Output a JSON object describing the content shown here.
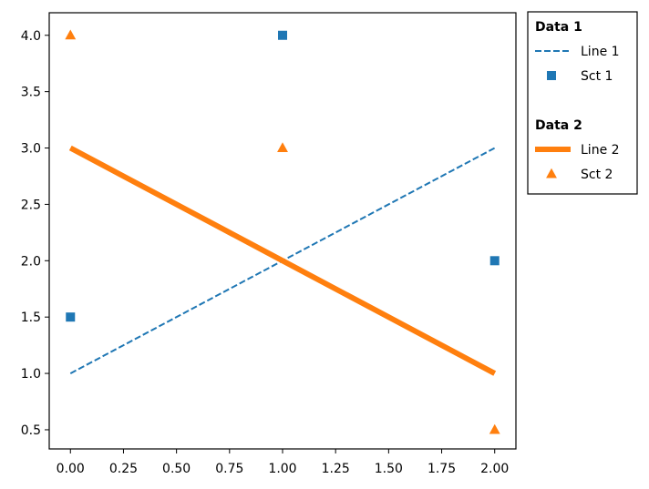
{
  "chart_data": {
    "type": "line",
    "title": "",
    "xlabel": "",
    "ylabel": "",
    "xlim": [
      -0.1,
      2.1
    ],
    "ylim": [
      0.33,
      4.2
    ],
    "xticks": [
      0.0,
      0.25,
      0.5,
      0.75,
      1.0,
      1.25,
      1.5,
      1.75,
      2.0
    ],
    "xtick_labels": [
      "0.00",
      "0.25",
      "0.50",
      "0.75",
      "1.00",
      "1.25",
      "1.50",
      "1.75",
      "2.00"
    ],
    "yticks": [
      0.5,
      1.0,
      1.5,
      2.0,
      2.5,
      3.0,
      3.5,
      4.0
    ],
    "ytick_labels": [
      "0.5",
      "1.0",
      "1.5",
      "2.0",
      "2.5",
      "3.0",
      "3.5",
      "4.0"
    ],
    "grid": false,
    "legend_placement": "outside-top-right",
    "legend_groups": [
      {
        "title": "Data 1",
        "entries": [
          {
            "label": "Line 1",
            "kind": "line",
            "series": "line1"
          },
          {
            "label": "Sct 1",
            "kind": "marker",
            "series": "sct1"
          }
        ]
      },
      {
        "title": "Data 2",
        "entries": [
          {
            "label": "Line 2",
            "kind": "line",
            "series": "line2"
          },
          {
            "label": "Sct 2",
            "kind": "marker",
            "series": "sct2"
          }
        ]
      }
    ],
    "series": [
      {
        "id": "line1",
        "kind": "line",
        "style": "dashed",
        "color": "#1f77b4",
        "x": [
          0,
          1,
          2
        ],
        "y": [
          1,
          2,
          3
        ]
      },
      {
        "id": "sct1",
        "kind": "scatter",
        "marker": "square",
        "color": "#1f77b4",
        "x": [
          0,
          1,
          2
        ],
        "y": [
          1.5,
          4,
          2
        ]
      },
      {
        "id": "line2",
        "kind": "line",
        "style": "solid-thick",
        "color": "#ff7f0e",
        "x": [
          0,
          1,
          2
        ],
        "y": [
          3,
          2,
          1
        ]
      },
      {
        "id": "sct2",
        "kind": "scatter",
        "marker": "triangle",
        "color": "#ff7f0e",
        "x": [
          0,
          1,
          2
        ],
        "y": [
          4,
          3,
          0.5
        ]
      }
    ]
  }
}
